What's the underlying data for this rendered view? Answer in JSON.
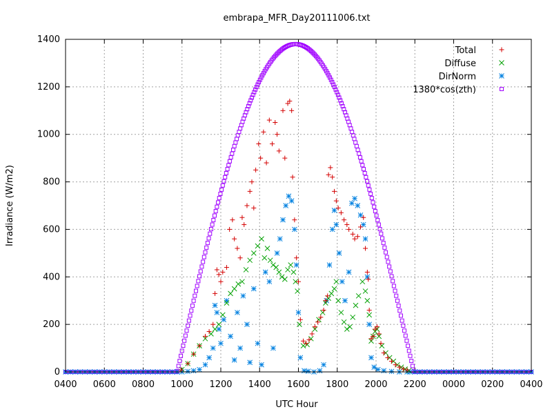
{
  "chart_data": {
    "type": "scatter",
    "title": "embrapa_MFR_Day20111006.txt",
    "xlabel": "UTC Hour",
    "ylabel": "Irradiance (W/m2)",
    "x_tick_labels": [
      "0400",
      "0600",
      "0800",
      "1000",
      "1200",
      "1400",
      "1600",
      "1800",
      "2000",
      "2200",
      "0000",
      "0200",
      "0400"
    ],
    "xlim_hours": [
      4,
      28
    ],
    "ylim": [
      0,
      1400
    ],
    "y_ticks": [
      0,
      200,
      400,
      600,
      800,
      1000,
      1200,
      1400
    ],
    "grid": true,
    "legend_position": "top-right",
    "series": [
      {
        "name": "Total",
        "color": "#d40000",
        "marker": "plus",
        "points": [
          [
            9.95,
            8
          ],
          [
            10.3,
            35
          ],
          [
            10.6,
            75
          ],
          [
            10.9,
            110
          ],
          [
            11.2,
            150
          ],
          [
            11.4,
            170
          ],
          [
            11.6,
            200
          ],
          [
            11.7,
            330
          ],
          [
            11.8,
            430
          ],
          [
            11.9,
            410
          ],
          [
            12.0,
            380
          ],
          [
            12.1,
            420
          ],
          [
            12.3,
            440
          ],
          [
            12.45,
            600
          ],
          [
            12.6,
            640
          ],
          [
            12.7,
            560
          ],
          [
            12.85,
            520
          ],
          [
            13.0,
            480
          ],
          [
            13.1,
            650
          ],
          [
            13.2,
            620
          ],
          [
            13.35,
            700
          ],
          [
            13.5,
            760
          ],
          [
            13.6,
            800
          ],
          [
            13.7,
            690
          ],
          [
            13.8,
            850
          ],
          [
            13.95,
            960
          ],
          [
            14.05,
            900
          ],
          [
            14.2,
            1010
          ],
          [
            14.35,
            880
          ],
          [
            14.5,
            1060
          ],
          [
            14.65,
            960
          ],
          [
            14.8,
            1050
          ],
          [
            14.9,
            1000
          ],
          [
            15.0,
            930
          ],
          [
            15.2,
            1100
          ],
          [
            15.3,
            900
          ],
          [
            15.45,
            1130
          ],
          [
            15.55,
            1140
          ],
          [
            15.65,
            1100
          ],
          [
            15.7,
            820
          ],
          [
            15.8,
            640
          ],
          [
            15.9,
            480
          ],
          [
            16.0,
            380
          ],
          [
            16.1,
            220
          ],
          [
            16.25,
            130
          ],
          [
            16.4,
            120
          ],
          [
            16.55,
            135
          ],
          [
            16.7,
            160
          ],
          [
            16.85,
            190
          ],
          [
            17.0,
            210
          ],
          [
            17.15,
            230
          ],
          [
            17.3,
            260
          ],
          [
            17.4,
            300
          ],
          [
            17.5,
            320
          ],
          [
            17.55,
            830
          ],
          [
            17.65,
            860
          ],
          [
            17.75,
            820
          ],
          [
            17.85,
            760
          ],
          [
            17.95,
            720
          ],
          [
            18.05,
            690
          ],
          [
            18.2,
            670
          ],
          [
            18.35,
            640
          ],
          [
            18.5,
            620
          ],
          [
            18.6,
            600
          ],
          [
            18.8,
            580
          ],
          [
            18.9,
            560
          ],
          [
            19.05,
            570
          ],
          [
            19.2,
            610
          ],
          [
            19.35,
            650
          ],
          [
            19.45,
            520
          ],
          [
            19.55,
            420
          ],
          [
            19.6,
            390
          ],
          [
            19.65,
            260
          ],
          [
            19.75,
            140
          ],
          [
            19.85,
            150
          ],
          [
            19.95,
            180
          ],
          [
            20.05,
            190
          ],
          [
            20.15,
            160
          ],
          [
            20.25,
            120
          ],
          [
            20.4,
            80
          ],
          [
            20.6,
            60
          ],
          [
            20.8,
            45
          ],
          [
            21.0,
            30
          ],
          [
            21.2,
            20
          ],
          [
            21.4,
            12
          ],
          [
            21.6,
            8
          ]
        ]
      },
      {
        "name": "Diffuse",
        "color": "#00a000",
        "marker": "cross",
        "points": [
          [
            10.0,
            10
          ],
          [
            10.3,
            35
          ],
          [
            10.6,
            75
          ],
          [
            10.9,
            110
          ],
          [
            11.2,
            140
          ],
          [
            11.5,
            160
          ],
          [
            11.7,
            180
          ],
          [
            11.9,
            200
          ],
          [
            12.1,
            240
          ],
          [
            12.3,
            290
          ],
          [
            12.5,
            330
          ],
          [
            12.7,
            350
          ],
          [
            12.9,
            370
          ],
          [
            13.1,
            380
          ],
          [
            13.3,
            430
          ],
          [
            13.5,
            470
          ],
          [
            13.7,
            500
          ],
          [
            13.9,
            530
          ],
          [
            14.1,
            560
          ],
          [
            14.25,
            480
          ],
          [
            14.4,
            520
          ],
          [
            14.55,
            470
          ],
          [
            14.7,
            450
          ],
          [
            14.85,
            440
          ],
          [
            15.0,
            420
          ],
          [
            15.15,
            400
          ],
          [
            15.3,
            390
          ],
          [
            15.45,
            430
          ],
          [
            15.6,
            450
          ],
          [
            15.75,
            420
          ],
          [
            15.85,
            380
          ],
          [
            15.95,
            340
          ],
          [
            16.05,
            200
          ],
          [
            16.25,
            110
          ],
          [
            16.45,
            115
          ],
          [
            16.65,
            140
          ],
          [
            16.85,
            180
          ],
          [
            17.05,
            220
          ],
          [
            17.25,
            250
          ],
          [
            17.4,
            290
          ],
          [
            17.55,
            310
          ],
          [
            17.7,
            330
          ],
          [
            17.85,
            350
          ],
          [
            17.95,
            380
          ],
          [
            18.05,
            300
          ],
          [
            18.2,
            250
          ],
          [
            18.35,
            210
          ],
          [
            18.5,
            180
          ],
          [
            18.65,
            190
          ],
          [
            18.8,
            230
          ],
          [
            18.95,
            280
          ],
          [
            19.1,
            320
          ],
          [
            19.3,
            380
          ],
          [
            19.45,
            340
          ],
          [
            19.55,
            300
          ],
          [
            19.65,
            240
          ],
          [
            19.75,
            130
          ],
          [
            19.85,
            150
          ],
          [
            19.95,
            170
          ],
          [
            20.05,
            180
          ],
          [
            20.15,
            150
          ],
          [
            20.3,
            110
          ],
          [
            20.5,
            80
          ],
          [
            20.7,
            60
          ],
          [
            20.9,
            45
          ],
          [
            21.1,
            30
          ],
          [
            21.3,
            20
          ],
          [
            21.5,
            12
          ],
          [
            21.7,
            6
          ]
        ]
      },
      {
        "name": "DirNorm",
        "color": "#0080e0",
        "marker": "star",
        "points": [
          [
            10.0,
            0
          ],
          [
            10.3,
            2
          ],
          [
            10.6,
            5
          ],
          [
            10.9,
            10
          ],
          [
            11.2,
            30
          ],
          [
            11.4,
            60
          ],
          [
            11.6,
            100
          ],
          [
            11.7,
            280
          ],
          [
            11.8,
            250
          ],
          [
            11.9,
            180
          ],
          [
            12.0,
            120
          ],
          [
            12.15,
            220
          ],
          [
            12.3,
            300
          ],
          [
            12.5,
            150
          ],
          [
            12.7,
            50
          ],
          [
            12.85,
            250
          ],
          [
            13.0,
            100
          ],
          [
            13.15,
            320
          ],
          [
            13.35,
            200
          ],
          [
            13.5,
            40
          ],
          [
            13.7,
            350
          ],
          [
            13.9,
            120
          ],
          [
            14.1,
            30
          ],
          [
            14.3,
            420
          ],
          [
            14.5,
            380
          ],
          [
            14.7,
            100
          ],
          [
            14.9,
            500
          ],
          [
            15.05,
            560
          ],
          [
            15.2,
            640
          ],
          [
            15.35,
            700
          ],
          [
            15.5,
            740
          ],
          [
            15.65,
            720
          ],
          [
            15.8,
            600
          ],
          [
            15.9,
            450
          ],
          [
            16.0,
            250
          ],
          [
            16.1,
            60
          ],
          [
            16.3,
            5
          ],
          [
            16.5,
            3
          ],
          [
            16.8,
            0
          ],
          [
            17.1,
            5
          ],
          [
            17.3,
            30
          ],
          [
            17.45,
            300
          ],
          [
            17.6,
            450
          ],
          [
            17.75,
            600
          ],
          [
            17.85,
            680
          ],
          [
            17.95,
            620
          ],
          [
            18.1,
            500
          ],
          [
            18.25,
            380
          ],
          [
            18.4,
            300
          ],
          [
            18.6,
            420
          ],
          [
            18.75,
            710
          ],
          [
            18.9,
            730
          ],
          [
            19.05,
            700
          ],
          [
            19.2,
            660
          ],
          [
            19.35,
            620
          ],
          [
            19.45,
            560
          ],
          [
            19.55,
            400
          ],
          [
            19.65,
            200
          ],
          [
            19.75,
            60
          ],
          [
            19.9,
            20
          ],
          [
            20.1,
            10
          ],
          [
            20.4,
            5
          ],
          [
            20.8,
            2
          ],
          [
            21.2,
            0
          ],
          [
            21.6,
            0
          ]
        ]
      },
      {
        "name": "1380*cos(zth)",
        "color": "#a000ff",
        "marker": "square",
        "function": "cosine_arch",
        "peak_value": 1380,
        "peak_hour": 15.85,
        "sunrise_hour": 9.75,
        "sunset_hour": 21.95
      }
    ]
  }
}
